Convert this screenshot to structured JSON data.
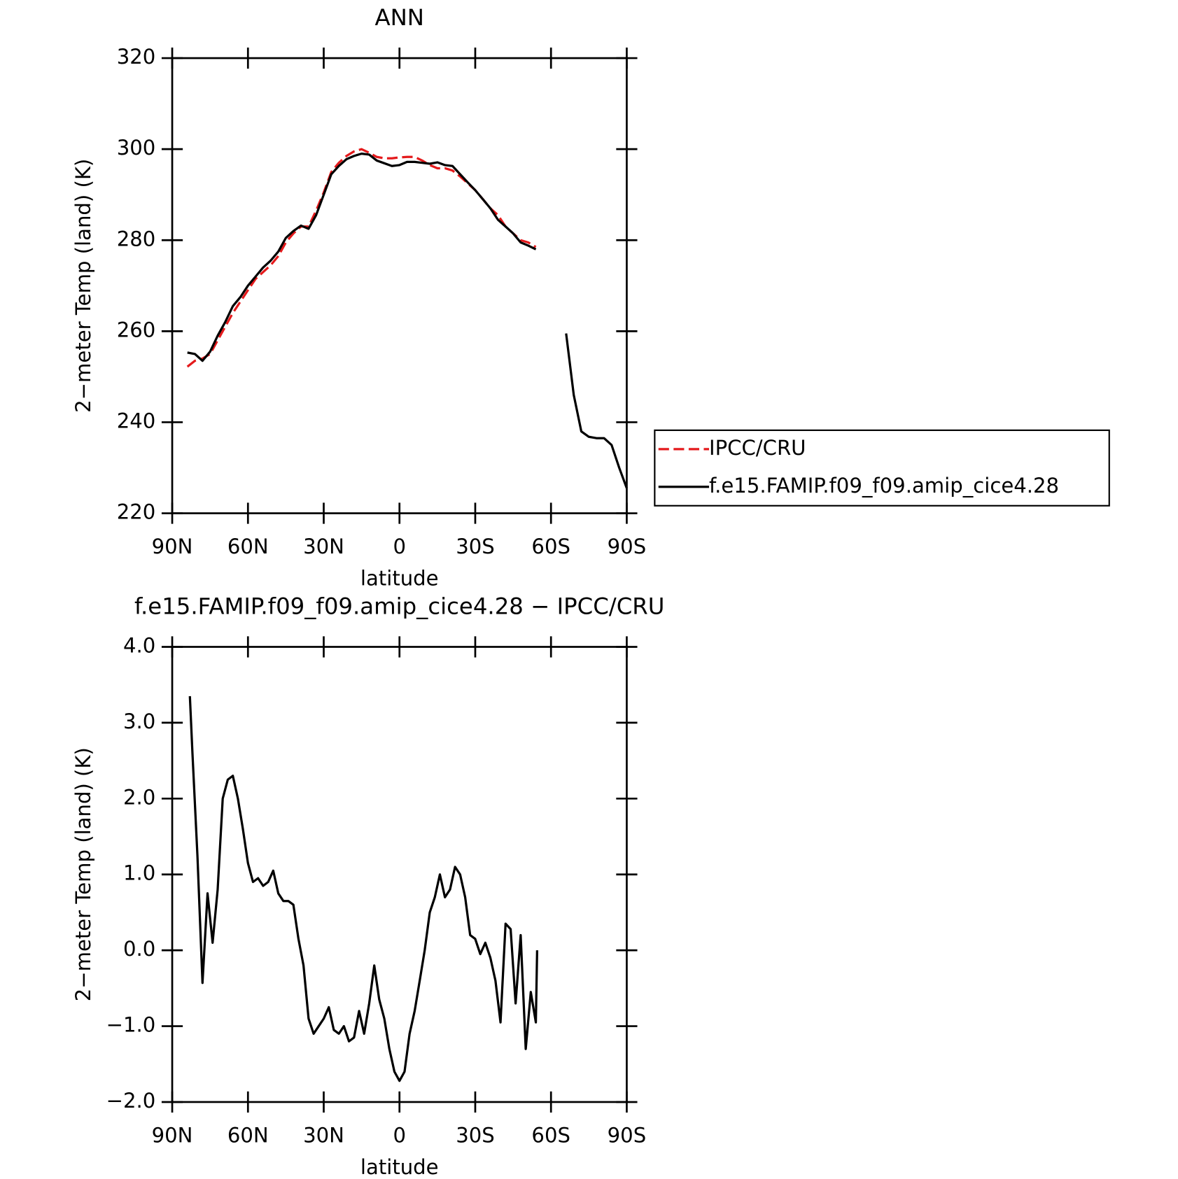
{
  "chart_data": [
    {
      "type": "line",
      "title": "ANN",
      "x_label": "latitude",
      "y_label": "2−meter Temp (land) (K)",
      "x": [
        84,
        81,
        78,
        75,
        72,
        69,
        66,
        63,
        60,
        57,
        54,
        51,
        48,
        45,
        42,
        39,
        36,
        33,
        30,
        27,
        24,
        21,
        18,
        15,
        12,
        9,
        6,
        3,
        0,
        -3,
        -6,
        -9,
        -12,
        -15,
        -18,
        -21,
        -24,
        -27,
        -30,
        -33,
        -36,
        -39,
        -42,
        -45,
        -48,
        -51,
        -54,
        -57,
        -60,
        -63,
        -66,
        -69,
        -72,
        -75,
        -78,
        -81,
        -84,
        -87,
        -90
      ],
      "series": [
        {
          "name": "IPCC/CRU",
          "color": "#e41a1c",
          "linestyle": "dashed",
          "values": [
            252.2,
            253.5,
            254,
            255,
            258,
            261,
            264,
            266.5,
            269,
            271.5,
            273,
            274.5,
            276.5,
            279.5,
            281.5,
            283,
            283,
            286.5,
            290.5,
            295,
            297,
            298.5,
            299.5,
            300,
            299.2,
            298.3,
            298,
            298,
            298.2,
            298.3,
            298.3,
            297.5,
            296.5,
            295.8,
            295.8,
            295.3,
            294,
            292.5,
            291,
            289,
            287,
            285.5,
            283,
            281.5,
            280,
            279.5,
            278.5,
            null,
            null,
            null,
            null,
            null,
            null,
            null,
            null,
            null,
            null,
            null,
            null
          ]
        },
        {
          "name": "f.e15.FAMIP.f09_f09.amip_cice4.28",
          "color": "#000000",
          "linestyle": "solid",
          "values": [
            255.3,
            255,
            253.5,
            255.5,
            259,
            262,
            265.5,
            267.5,
            270,
            272,
            274,
            275.5,
            277.5,
            280.5,
            282,
            283.2,
            282.5,
            285.5,
            290,
            294.5,
            296.3,
            297.8,
            298.5,
            299,
            298.8,
            297.5,
            296.9,
            296.3,
            296.5,
            297.2,
            297.2,
            297,
            296.8,
            297.1,
            296.5,
            296.3,
            294.5,
            292.7,
            291,
            289,
            287,
            284.5,
            283,
            281.5,
            279.5,
            278.8,
            278,
            null,
            null,
            null,
            259.5,
            246,
            238,
            236.8,
            236.5,
            236.5,
            235,
            230,
            225.5
          ]
        }
      ],
      "xlim": [
        90,
        -90
      ],
      "xticks": [
        {
          "value": 90,
          "label": "90N"
        },
        {
          "value": 60,
          "label": "60N"
        },
        {
          "value": 30,
          "label": "30N"
        },
        0,
        {
          "value": -30,
          "label": "30S"
        },
        {
          "value": -60,
          "label": "60S"
        },
        {
          "value": -90,
          "label": "90S"
        }
      ],
      "ylim": [
        220,
        320
      ],
      "yticks": [
        220,
        240,
        260,
        280,
        300,
        320
      ],
      "legend": "right"
    },
    {
      "type": "line",
      "title": "f.e15.FAMIP.f09_f09.amip_cice4.28 − IPCC/CRU",
      "x_label": "latitude",
      "y_label": "2−meter Temp (land) (K)",
      "x": [
        83,
        82,
        80,
        78,
        76,
        74,
        72,
        70,
        68,
        66,
        64,
        62,
        60,
        58,
        56,
        54,
        52,
        50,
        48,
        46,
        44,
        42,
        40,
        38,
        36,
        34,
        32,
        30,
        28,
        26,
        24,
        22,
        20,
        18,
        16,
        14,
        12,
        10,
        8,
        6,
        4,
        2,
        0,
        -2,
        -4,
        -6,
        -8,
        -10,
        -12,
        -14,
        -16,
        -18,
        -20,
        -22,
        -24,
        -26,
        -28,
        -30,
        -32,
        -34,
        -36,
        -38,
        -40,
        -42,
        -44,
        -46,
        -48,
        -50,
        -52,
        -54,
        -54.5
      ],
      "series": [
        {
          "color": "#000000",
          "linestyle": "solid",
          "values": [
            3.35,
            2.6,
            1.25,
            -0.43,
            0.75,
            0.1,
            0.8,
            2.0,
            2.25,
            2.3,
            2.0,
            1.6,
            1.15,
            0.9,
            0.95,
            0.85,
            0.9,
            1.05,
            0.75,
            0.65,
            0.65,
            0.6,
            0.15,
            -0.2,
            -0.9,
            -1.1,
            -1.0,
            -0.9,
            -0.75,
            -1.05,
            -1.1,
            -1.0,
            -1.2,
            -1.15,
            -0.8,
            -1.1,
            -0.7,
            -0.2,
            -0.65,
            -0.9,
            -1.3,
            -1.6,
            -1.72,
            -1.6,
            -1.1,
            -0.8,
            -0.4,
            0.0,
            0.5,
            0.7,
            1.0,
            0.7,
            0.8,
            1.1,
            1.0,
            0.7,
            0.2,
            0.15,
            -0.05,
            0.1,
            -0.1,
            -0.4,
            -0.95,
            0.35,
            0.28,
            -0.7,
            0.2,
            -1.3,
            -0.55,
            -0.95,
            0.0
          ]
        }
      ],
      "xlim": [
        90,
        -90
      ],
      "xticks": [
        {
          "value": 90,
          "label": "90N"
        },
        {
          "value": 60,
          "label": "60N"
        },
        {
          "value": 30,
          "label": "30N"
        },
        0,
        {
          "value": -30,
          "label": "30S"
        },
        {
          "value": -60,
          "label": "60S"
        },
        {
          "value": -90,
          "label": "90S"
        }
      ],
      "ylim": [
        -2,
        4
      ],
      "yticks": [
        {
          "value": -2,
          "label": "−2.0"
        },
        {
          "value": -1,
          "label": "−1.0"
        },
        {
          "value": 0,
          "label": "0.0"
        },
        {
          "value": 1,
          "label": "1.0"
        },
        {
          "value": 2,
          "label": "2.0"
        },
        {
          "value": 3,
          "label": "3.0"
        },
        {
          "value": 4,
          "label": "4.0"
        }
      ]
    }
  ]
}
